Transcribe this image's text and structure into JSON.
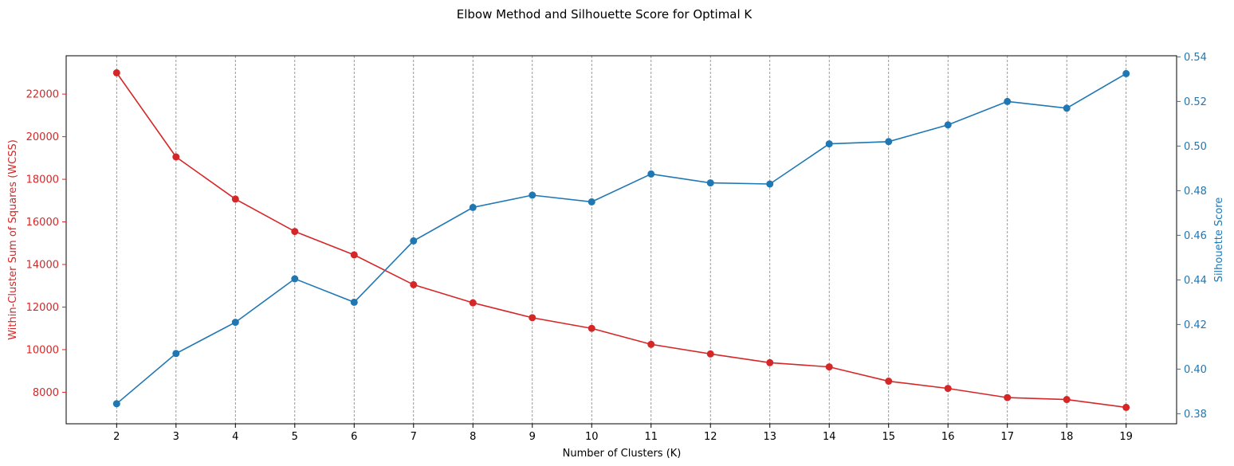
{
  "chart_data": {
    "type": "line",
    "title": "Elbow Method and Silhouette Score for Optimal K",
    "xlabel": "Number of Clusters (K)",
    "ylabel_left": "Within-Cluster Sum of Squares (WCSS)",
    "ylabel_right": "Silhouette Score",
    "x": [
      2,
      3,
      4,
      5,
      6,
      7,
      8,
      9,
      10,
      11,
      12,
      13,
      14,
      15,
      16,
      17,
      18,
      19
    ],
    "xlim": [
      1.15,
      19.85
    ],
    "ylim_left": [
      6520,
      23800
    ],
    "ylim_right": [
      0.3755,
      0.5405
    ],
    "yticks_left": [
      8000,
      10000,
      12000,
      14000,
      16000,
      18000,
      20000,
      22000
    ],
    "yticks_right": [
      0.38,
      0.4,
      0.42,
      0.44,
      0.46,
      0.48,
      0.5,
      0.52,
      0.54
    ],
    "yticks_right_labels": [
      "0.38",
      "0.40",
      "0.42",
      "0.44",
      "0.46",
      "0.48",
      "0.50",
      "0.52",
      "0.54"
    ],
    "grid": "vertical dashed gridlines at each x tick",
    "series": [
      {
        "axis": "left",
        "color": "#d62728",
        "marker": "circle",
        "values": [
          23000,
          19050,
          17070,
          15550,
          14450,
          13050,
          12200,
          11500,
          11000,
          10250,
          9800,
          9390,
          9190,
          8520,
          8180,
          7750,
          7660,
          7290
        ]
      },
      {
        "axis": "right",
        "color": "#1f77b4",
        "marker": "circle",
        "values": [
          0.3845,
          0.407,
          0.421,
          0.4405,
          0.43,
          0.4575,
          0.4725,
          0.478,
          0.475,
          0.4875,
          0.4835,
          0.483,
          0.501,
          0.502,
          0.5095,
          0.52,
          0.517,
          0.5325
        ]
      }
    ]
  }
}
